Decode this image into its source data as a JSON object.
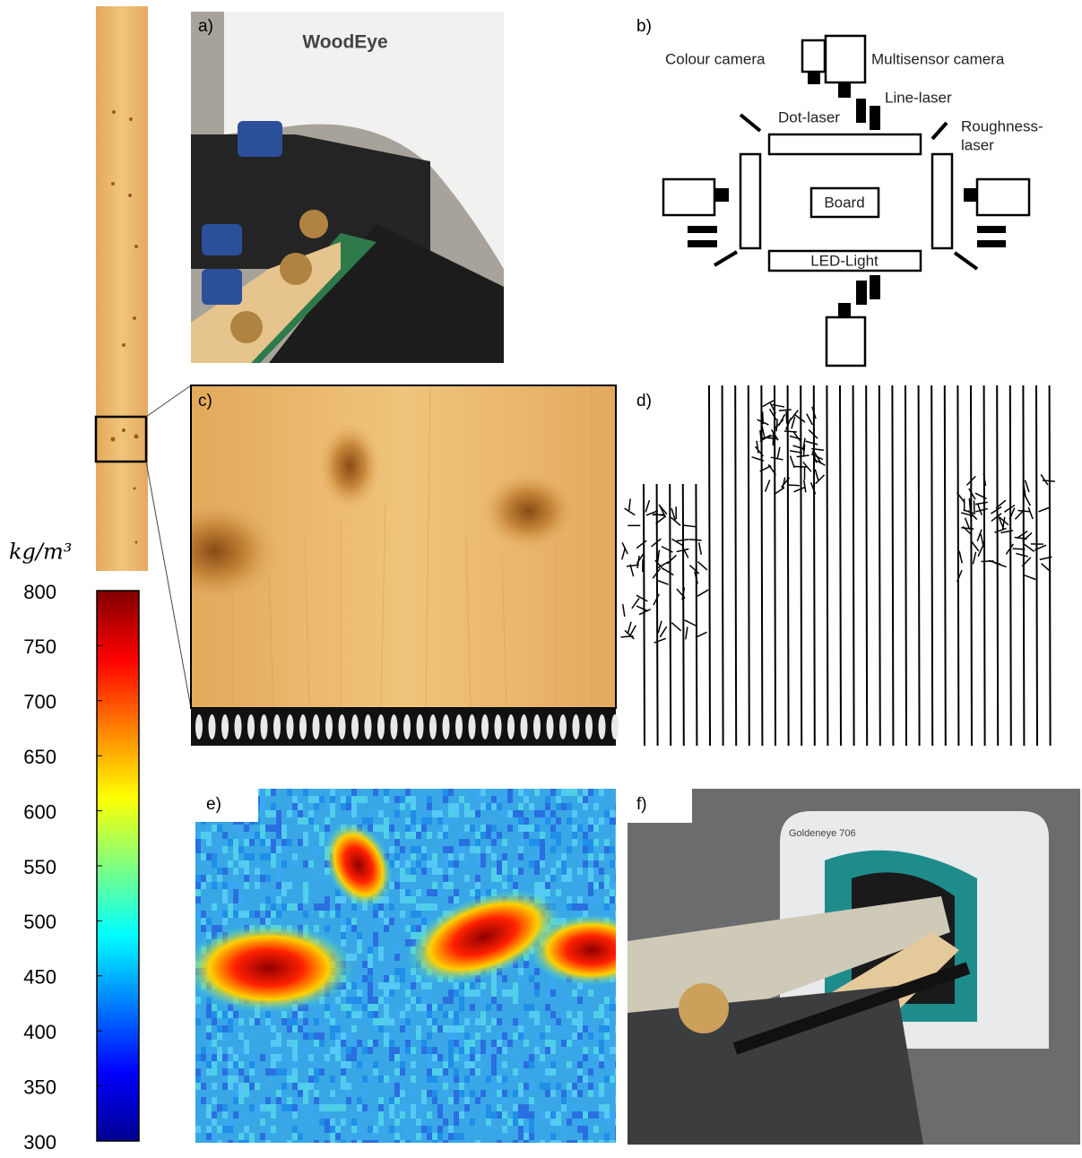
{
  "panels": {
    "a": "a)",
    "b": "b)",
    "c": "c)",
    "d": "d)",
    "e": "e)",
    "f": "f)"
  },
  "photo_a": {
    "brand": "WoodEye"
  },
  "diagram_b": {
    "colour_camera": "Colour camera",
    "multisensor_camera": "Multisensor camera",
    "line_laser": "Line-laser",
    "dot_laser": "Dot-laser",
    "roughness_laser": [
      "Roughness-",
      "laser"
    ],
    "board": "Board",
    "led_light": "LED-Light"
  },
  "photo_f": {
    "brand": "Goldeneye 706"
  },
  "colorbar": {
    "unit": "kg/m³",
    "lim": [
      300,
      800
    ],
    "ticks": [
      300,
      350,
      400,
      450,
      500,
      550,
      600,
      650,
      700,
      750,
      800
    ]
  }
}
